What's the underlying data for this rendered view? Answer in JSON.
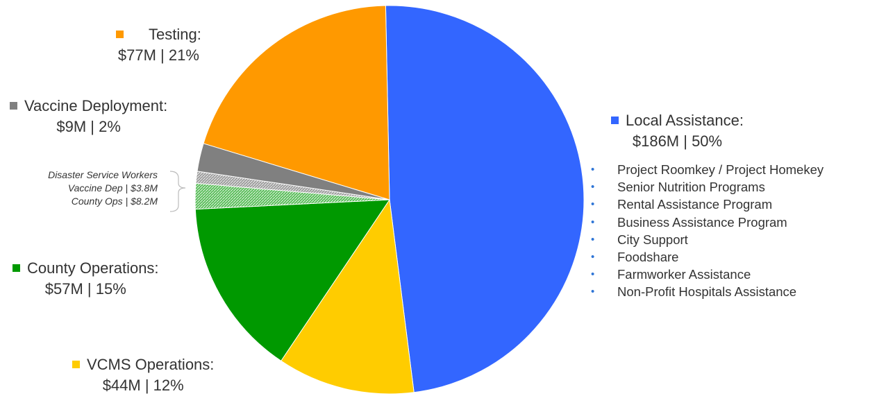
{
  "chart_data": {
    "type": "pie",
    "title": "",
    "slices": [
      {
        "key": "local",
        "label": "Local Assistance:",
        "value_text": "$186M | 50%",
        "value": 186,
        "percent": 50,
        "color": "#3366ff"
      },
      {
        "key": "vcms",
        "label": "VCMS Operations:",
        "value_text": "$44M | 12%",
        "value": 44,
        "percent": 12,
        "color": "#ffcc00"
      },
      {
        "key": "county",
        "label": "County Operations:",
        "value_text": "$57M | 15%",
        "value": 57,
        "percent": 15,
        "color": "#009900"
      },
      {
        "key": "dsw_county",
        "label": "County Ops | $8.2M",
        "value": 8.2,
        "color": "#009900",
        "pattern": "hatched"
      },
      {
        "key": "dsw_vaccine",
        "label": "Vaccine Dep | $3.8M",
        "value": 3.8,
        "color": "#808080",
        "pattern": "hatched"
      },
      {
        "key": "vaccine",
        "label": "Vaccine Deployment:",
        "value_text": "$9M | 2%",
        "value": 9,
        "percent": 2,
        "color": "#808080"
      },
      {
        "key": "testing",
        "label": "Testing:",
        "value_text": "$77M | 21%",
        "value": 77,
        "percent": 21,
        "color": "#ff9900"
      }
    ],
    "annotation": {
      "title": "Disaster Service Workers",
      "lines": [
        "Vaccine Dep | $3.8M",
        "County Ops | $8.2M"
      ]
    },
    "local_assistance_programs": [
      "Project Roomkey / Project Homekey",
      "Senior Nutrition Programs",
      "Rental Assistance Program",
      "Business Assistance Program",
      "City Support",
      "Foodshare",
      "Farmworker Assistance",
      "Non-Profit Hospitals Assistance"
    ],
    "legend_placement": "labels-around-pie"
  }
}
